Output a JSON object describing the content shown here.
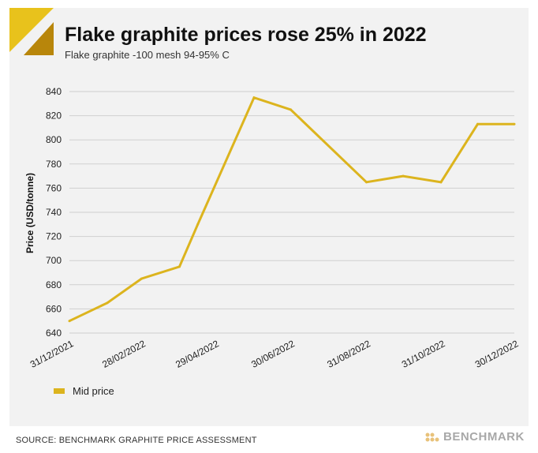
{
  "header": {
    "title": "Flake graphite prices rose 25% in 2022",
    "subtitle": "Flake graphite -100 mesh 94-95% C"
  },
  "footer": {
    "source": "SOURCE: BENCHMARK GRAPHITE PRICE ASSESSMENT",
    "brand": "BENCHMARK"
  },
  "colors": {
    "line": "#dcb41e",
    "grid": "#cfcfcf",
    "logo_light": "#e8c21c",
    "logo_dark": "#b8860b"
  },
  "chart_data": {
    "type": "line",
    "title": "Flake graphite prices rose 25% in 2022",
    "subtitle": "Flake graphite -100 mesh 94-95% C",
    "xlabel": "",
    "ylabel": "Price (USD/tonne)",
    "ylim": [
      640,
      840
    ],
    "yticks": [
      640,
      660,
      680,
      700,
      720,
      740,
      760,
      780,
      800,
      820,
      840
    ],
    "xticks": [
      "31/12/2021",
      "28/02/2022",
      "29/04/2022",
      "30/06/2022",
      "31/08/2022",
      "31/10/2022",
      "30/12/2022"
    ],
    "grid": true,
    "legend_position": "bottom-left",
    "x": [
      "31/12/2021",
      "31/01/2022",
      "28/02/2022",
      "31/03/2022",
      "15/04/2022",
      "31/05/2022",
      "30/06/2022",
      "31/08/2022",
      "30/09/2022",
      "31/10/2022",
      "30/11/2022",
      "30/12/2022"
    ],
    "series": [
      {
        "name": "Mid price",
        "values": [
          650,
          665,
          685,
          695,
          730,
          835,
          825,
          765,
          770,
          765,
          813,
          813
        ]
      }
    ]
  }
}
